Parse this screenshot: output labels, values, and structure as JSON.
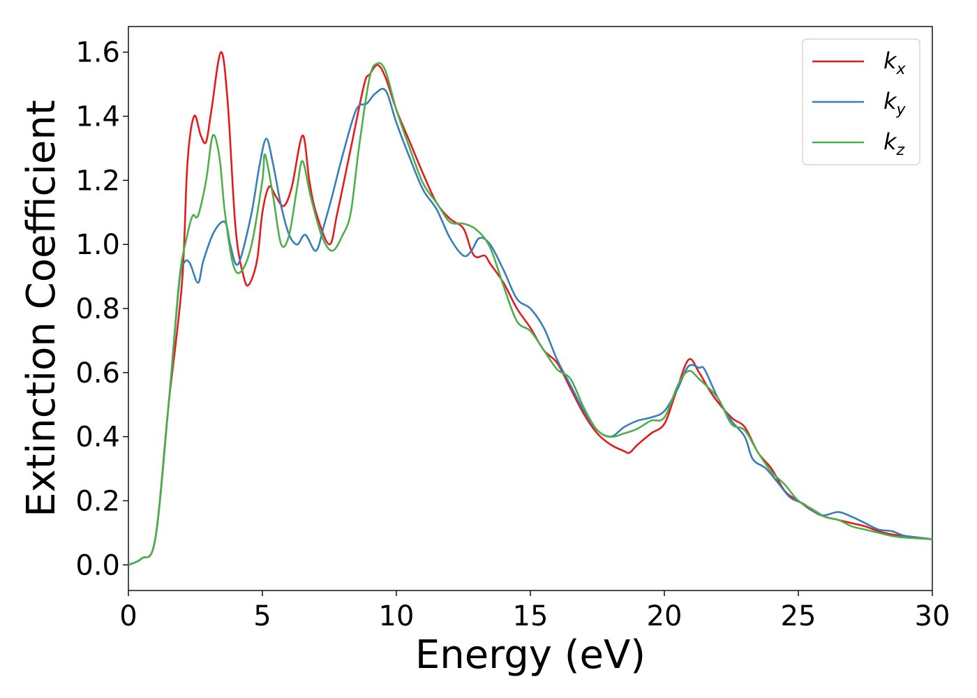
{
  "chart_data": {
    "type": "line",
    "title": "",
    "xlabel": "Energy (eV)",
    "ylabel": "Extinction Coefficient",
    "xlim": [
      0,
      30
    ],
    "ylim": [
      -0.08,
      1.68
    ],
    "xticks": [
      0,
      5,
      10,
      15,
      20,
      25,
      30
    ],
    "xtick_labels": [
      "0",
      "5",
      "10",
      "15",
      "20",
      "25",
      "30"
    ],
    "yticks": [
      0.0,
      0.2,
      0.4,
      0.6,
      0.8,
      1.0,
      1.2,
      1.4,
      1.6
    ],
    "ytick_labels": [
      "0.0",
      "0.2",
      "0.4",
      "0.6",
      "0.8",
      "1.0",
      "1.2",
      "1.4",
      "1.6"
    ],
    "grid": false,
    "legend_position": "top-right",
    "series": [
      {
        "name": "k",
        "subscript": "x",
        "color": "#e41a1c",
        "points": [
          [
            0,
            0
          ],
          [
            0.5,
            0.02
          ],
          [
            1,
            0.08
          ],
          [
            1.5,
            0.5
          ],
          [
            2,
            0.88
          ],
          [
            2.2,
            1.25
          ],
          [
            2.45,
            1.4
          ],
          [
            2.7,
            1.34
          ],
          [
            2.9,
            1.32
          ],
          [
            3.1,
            1.42
          ],
          [
            3.45,
            1.6
          ],
          [
            3.7,
            1.45
          ],
          [
            4,
            1.05
          ],
          [
            4.3,
            0.9
          ],
          [
            4.5,
            0.875
          ],
          [
            4.8,
            0.95
          ],
          [
            5.0,
            1.1
          ],
          [
            5.25,
            1.18
          ],
          [
            5.5,
            1.15
          ],
          [
            5.8,
            1.12
          ],
          [
            6.1,
            1.18
          ],
          [
            6.5,
            1.34
          ],
          [
            6.75,
            1.2
          ],
          [
            7,
            1.1
          ],
          [
            7.5,
            1.0
          ],
          [
            7.8,
            1.1
          ],
          [
            8.3,
            1.3
          ],
          [
            8.8,
            1.5
          ],
          [
            9.0,
            1.53
          ],
          [
            9.3,
            1.56
          ],
          [
            9.6,
            1.52
          ],
          [
            10,
            1.42
          ],
          [
            10.5,
            1.32
          ],
          [
            11,
            1.22
          ],
          [
            11.5,
            1.13
          ],
          [
            12,
            1.08
          ],
          [
            12.5,
            1.05
          ],
          [
            12.8,
            0.98
          ],
          [
            13,
            0.96
          ],
          [
            13.3,
            0.965
          ],
          [
            13.5,
            0.94
          ],
          [
            14,
            0.88
          ],
          [
            14.5,
            0.8
          ],
          [
            15,
            0.74
          ],
          [
            15.5,
            0.67
          ],
          [
            16,
            0.63
          ],
          [
            16.5,
            0.55
          ],
          [
            17,
            0.47
          ],
          [
            17.5,
            0.41
          ],
          [
            18,
            0.375
          ],
          [
            18.5,
            0.355
          ],
          [
            18.7,
            0.35
          ],
          [
            19,
            0.375
          ],
          [
            19.5,
            0.41
          ],
          [
            20,
            0.44
          ],
          [
            20.4,
            0.53
          ],
          [
            20.9,
            0.64
          ],
          [
            21.3,
            0.6
          ],
          [
            21.8,
            0.53
          ],
          [
            22.5,
            0.46
          ],
          [
            23,
            0.43
          ],
          [
            23.5,
            0.35
          ],
          [
            24,
            0.3
          ],
          [
            24.5,
            0.23
          ],
          [
            25,
            0.2
          ],
          [
            25.5,
            0.17
          ],
          [
            26,
            0.15
          ],
          [
            26.5,
            0.14
          ],
          [
            27,
            0.13
          ],
          [
            27.5,
            0.12
          ],
          [
            28,
            0.105
          ],
          [
            28.5,
            0.095
          ],
          [
            29,
            0.09
          ],
          [
            30,
            0.08
          ]
        ]
      },
      {
        "name": "k",
        "subscript": "y",
        "color": "#377eb8",
        "points": [
          [
            0,
            0
          ],
          [
            0.5,
            0.02
          ],
          [
            1,
            0.08
          ],
          [
            1.5,
            0.5
          ],
          [
            1.9,
            0.88
          ],
          [
            2.1,
            0.945
          ],
          [
            2.3,
            0.94
          ],
          [
            2.6,
            0.88
          ],
          [
            2.8,
            0.95
          ],
          [
            3.2,
            1.04
          ],
          [
            3.6,
            1.07
          ],
          [
            3.8,
            1.0
          ],
          [
            4.0,
            0.94
          ],
          [
            4.2,
            0.96
          ],
          [
            4.6,
            1.1
          ],
          [
            4.9,
            1.25
          ],
          [
            5.15,
            1.33
          ],
          [
            5.4,
            1.25
          ],
          [
            5.7,
            1.12
          ],
          [
            6.0,
            1.03
          ],
          [
            6.3,
            1.0
          ],
          [
            6.6,
            1.03
          ],
          [
            7.0,
            0.98
          ],
          [
            7.3,
            1.06
          ],
          [
            7.6,
            1.15
          ],
          [
            8.0,
            1.28
          ],
          [
            8.5,
            1.42
          ],
          [
            8.9,
            1.44
          ],
          [
            9.2,
            1.47
          ],
          [
            9.6,
            1.48
          ],
          [
            10,
            1.38
          ],
          [
            10.5,
            1.27
          ],
          [
            11,
            1.17
          ],
          [
            11.5,
            1.11
          ],
          [
            12,
            1.02
          ],
          [
            12.5,
            0.965
          ],
          [
            12.8,
            0.98
          ],
          [
            13.1,
            1.02
          ],
          [
            13.5,
            1.0
          ],
          [
            14,
            0.92
          ],
          [
            14.5,
            0.83
          ],
          [
            15,
            0.8
          ],
          [
            15.5,
            0.74
          ],
          [
            16,
            0.64
          ],
          [
            16.5,
            0.56
          ],
          [
            17,
            0.48
          ],
          [
            17.5,
            0.42
          ],
          [
            18,
            0.4
          ],
          [
            18.5,
            0.43
          ],
          [
            19,
            0.45
          ],
          [
            19.5,
            0.46
          ],
          [
            20,
            0.48
          ],
          [
            20.5,
            0.55
          ],
          [
            20.9,
            0.62
          ],
          [
            21.3,
            0.615
          ],
          [
            21.5,
            0.61
          ],
          [
            22,
            0.52
          ],
          [
            22.5,
            0.45
          ],
          [
            23,
            0.4
          ],
          [
            23.3,
            0.33
          ],
          [
            23.8,
            0.3
          ],
          [
            24.3,
            0.25
          ],
          [
            24.7,
            0.21
          ],
          [
            25.2,
            0.19
          ],
          [
            25.7,
            0.16
          ],
          [
            26,
            0.155
          ],
          [
            26.5,
            0.165
          ],
          [
            27,
            0.15
          ],
          [
            27.5,
            0.13
          ],
          [
            28,
            0.11
          ],
          [
            28.5,
            0.105
          ],
          [
            29,
            0.09
          ],
          [
            30,
            0.08
          ]
        ]
      },
      {
        "name": "k",
        "subscript": "z",
        "color": "#4daf4a",
        "points": [
          [
            0,
            0
          ],
          [
            0.5,
            0.02
          ],
          [
            1,
            0.08
          ],
          [
            1.5,
            0.5
          ],
          [
            1.9,
            0.89
          ],
          [
            2.2,
            1.03
          ],
          [
            2.4,
            1.09
          ],
          [
            2.6,
            1.09
          ],
          [
            2.9,
            1.2
          ],
          [
            3.15,
            1.34
          ],
          [
            3.4,
            1.27
          ],
          [
            3.6,
            1.1
          ],
          [
            3.9,
            0.94
          ],
          [
            4.2,
            0.915
          ],
          [
            4.6,
            1.0
          ],
          [
            5.0,
            1.2
          ],
          [
            5.1,
            1.28
          ],
          [
            5.4,
            1.15
          ],
          [
            5.7,
            1.0
          ],
          [
            6.0,
            1.03
          ],
          [
            6.3,
            1.18
          ],
          [
            6.5,
            1.26
          ],
          [
            6.8,
            1.15
          ],
          [
            7.2,
            1.03
          ],
          [
            7.6,
            0.98
          ],
          [
            8.0,
            1.03
          ],
          [
            8.3,
            1.1
          ],
          [
            8.6,
            1.3
          ],
          [
            9.0,
            1.52
          ],
          [
            9.3,
            1.565
          ],
          [
            9.6,
            1.54
          ],
          [
            10,
            1.42
          ],
          [
            10.5,
            1.3
          ],
          [
            11,
            1.19
          ],
          [
            11.5,
            1.13
          ],
          [
            12,
            1.07
          ],
          [
            12.5,
            1.065
          ],
          [
            13,
            1.045
          ],
          [
            13.5,
            0.99
          ],
          [
            14,
            0.87
          ],
          [
            14.5,
            0.76
          ],
          [
            15,
            0.73
          ],
          [
            15.5,
            0.67
          ],
          [
            16,
            0.61
          ],
          [
            16.5,
            0.58
          ],
          [
            17,
            0.49
          ],
          [
            17.5,
            0.42
          ],
          [
            18,
            0.4
          ],
          [
            18.5,
            0.41
          ],
          [
            19,
            0.425
          ],
          [
            19.5,
            0.45
          ],
          [
            20,
            0.46
          ],
          [
            20.5,
            0.56
          ],
          [
            20.9,
            0.605
          ],
          [
            21.3,
            0.58
          ],
          [
            22,
            0.52
          ],
          [
            22.5,
            0.44
          ],
          [
            23,
            0.42
          ],
          [
            23.5,
            0.35
          ],
          [
            24,
            0.29
          ],
          [
            24.5,
            0.25
          ],
          [
            25,
            0.2
          ],
          [
            25.5,
            0.175
          ],
          [
            26,
            0.15
          ],
          [
            26.5,
            0.14
          ],
          [
            27,
            0.12
          ],
          [
            27.5,
            0.11
          ],
          [
            28,
            0.1
          ],
          [
            28.5,
            0.09
          ],
          [
            29,
            0.085
          ],
          [
            30,
            0.08
          ]
        ]
      }
    ]
  }
}
